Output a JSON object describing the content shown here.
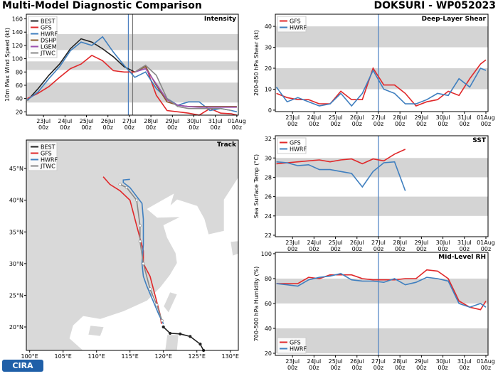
{
  "header": {
    "title": "Multi-Model Diagnostic Comparison",
    "storm": "DOKSURI - WP052023",
    "logo": "CIRA"
  },
  "chart_data": [
    {
      "type": "line",
      "title": "Intensity",
      "ylabel": "10m Max Wind Speed (kt)",
      "x": [
        22.25,
        22.75,
        23.25,
        23.75,
        24.25,
        24.75,
        25.25,
        25.75,
        26.25,
        26.75,
        27.25,
        27.75,
        28.25,
        28.75,
        29.25,
        29.75,
        30.25,
        30.75,
        31.25,
        31.75,
        32.0
      ],
      "xlim": [
        22.2,
        32.07
      ],
      "xticks": [
        {
          "value": 23,
          "label": "23Jul\n00z"
        },
        {
          "value": 24,
          "label": "24Jul\n00z"
        },
        {
          "value": 25,
          "label": "25Jul\n00z"
        },
        {
          "value": 26,
          "label": "26Jul\n00z"
        },
        {
          "value": 27,
          "label": "27Jul\n00z"
        },
        {
          "value": 28,
          "label": "28Jul\n00z"
        },
        {
          "value": 29,
          "label": "29Jul\n00z"
        },
        {
          "value": 30,
          "label": "30Jul\n00z"
        },
        {
          "value": 31,
          "label": "31Jul\n00z"
        },
        {
          "value": 32,
          "label": "01Aug\n00z"
        }
      ],
      "ylim": [
        15,
        167
      ],
      "yticks": [
        20,
        40,
        60,
        80,
        100,
        120,
        140,
        160
      ],
      "bands": [
        [
          34,
          64
        ],
        [
          83,
          96
        ],
        [
          113,
          137
        ]
      ],
      "vlines": [
        {
          "x": 26.95,
          "color": "#4a7fc0"
        },
        {
          "x": 27.15,
          "color": "#777777"
        }
      ],
      "legend": "upper left",
      "series": [
        {
          "name": "BEST",
          "color": "#222222",
          "values": [
            37,
            55,
            75,
            92,
            115,
            130,
            125,
            115,
            103,
            88,
            80,
            null,
            null,
            null,
            null,
            null,
            null,
            null,
            null,
            null,
            null
          ]
        },
        {
          "name": "GFS",
          "color": "#e0282a",
          "values": [
            40,
            48,
            58,
            72,
            85,
            92,
            105,
            97,
            82,
            80,
            80,
            90,
            45,
            22,
            20,
            18,
            15,
            25,
            18,
            17,
            15
          ]
        },
        {
          "name": "HWRF",
          "color": "#3f7fbf",
          "values": [
            38,
            50,
            70,
            88,
            112,
            125,
            120,
            133,
            110,
            90,
            72,
            80,
            55,
            40,
            30,
            35,
            35,
            22,
            25,
            22,
            20
          ]
        },
        {
          "name": "DSHP",
          "color": "#8b5a2b",
          "values": [
            null,
            null,
            null,
            null,
            null,
            null,
            null,
            null,
            null,
            null,
            80,
            88,
            60,
            35,
            30,
            28,
            28,
            28,
            28,
            28,
            28
          ]
        },
        {
          "name": "LGEM",
          "color": "#9b4fb0",
          "values": [
            null,
            null,
            null,
            null,
            null,
            null,
            null,
            null,
            null,
            null,
            80,
            85,
            62,
            38,
            30,
            28,
            27,
            27,
            27,
            27,
            27
          ]
        },
        {
          "name": "JTWC",
          "color": "#888888",
          "values": [
            null,
            null,
            null,
            null,
            null,
            null,
            null,
            null,
            null,
            null,
            80,
            90,
            75,
            40,
            28,
            25,
            25,
            25,
            25,
            22,
            null
          ]
        }
      ]
    },
    {
      "type": "map",
      "title": "Track",
      "xlim": [
        99.5,
        131.2
      ],
      "ylim": [
        16.3,
        49.5
      ],
      "xticks": [
        {
          "value": 100,
          "label": "100°E"
        },
        {
          "value": 105,
          "label": "105°E"
        },
        {
          "value": 110,
          "label": "110°E"
        },
        {
          "value": 115,
          "label": "115°E"
        },
        {
          "value": 120,
          "label": "120°E"
        },
        {
          "value": 125,
          "label": "125°E"
        },
        {
          "value": 130,
          "label": "130°E"
        }
      ],
      "yticks": [
        {
          "value": 20,
          "label": "20°N"
        },
        {
          "value": 25,
          "label": "25°N"
        },
        {
          "value": 30,
          "label": "30°N"
        },
        {
          "value": 35,
          "label": "35°N"
        },
        {
          "value": 40,
          "label": "40°N"
        },
        {
          "value": 45,
          "label": "45°N"
        }
      ],
      "legend": "upper left",
      "series": [
        {
          "name": "BEST",
          "color": "#222222",
          "marker": "#222222",
          "lon": [
            126,
            125.5,
            124,
            122.5,
            121,
            120
          ],
          "lat": [
            16.3,
            17.3,
            18.5,
            18.9,
            19,
            20
          ]
        },
        {
          "name": "GFS",
          "color": "#e0282a",
          "lon": [
            119.7,
            119.5,
            119,
            118.5,
            118,
            117,
            117,
            116.5,
            116,
            115.5,
            115,
            113.5,
            112,
            111
          ],
          "lat": [
            20.5,
            22,
            24,
            26,
            28,
            30,
            32,
            34,
            36,
            38,
            40,
            41.5,
            42.5,
            43.7
          ]
        },
        {
          "name": "HWRF",
          "color": "#3f7fbf",
          "lon": [
            120,
            119.3,
            118.5,
            117.5,
            117,
            116.8,
            117,
            117,
            117,
            116.8,
            115,
            114,
            114,
            115
          ],
          "lat": [
            20.5,
            22,
            24,
            26.5,
            28,
            30,
            33,
            35,
            37,
            39.5,
            42,
            42.8,
            43.2,
            43.3
          ]
        },
        {
          "name": "JTWC",
          "color": "#888888",
          "marker": "#ffffff",
          "lon": [
            119.8,
            119,
            118,
            117,
            116.5,
            116.5,
            116,
            114.5,
            113.5
          ],
          "lat": [
            21,
            23.5,
            26,
            30,
            33.5,
            36,
            40,
            42,
            42.5
          ]
        }
      ]
    },
    {
      "type": "line",
      "title": "Deep-Layer Shear",
      "ylabel": "200-850 hPa Shear (kt)",
      "x": [
        22.25,
        22.75,
        23.25,
        23.75,
        24.25,
        24.75,
        25.25,
        25.75,
        26.25,
        26.75,
        27.25,
        27.75,
        28.25,
        28.75,
        29.25,
        29.75,
        30.25,
        30.75,
        31.25,
        31.75,
        32.0
      ],
      "xlim": [
        22.2,
        32.1
      ],
      "xticks": [
        {
          "value": 23,
          "label": "23Jul\n00z"
        },
        {
          "value": 24,
          "label": "24Jul\n00z"
        },
        {
          "value": 25,
          "label": "25Jul\n00z"
        },
        {
          "value": 26,
          "label": "26Jul\n00z"
        },
        {
          "value": 27,
          "label": "27Jul\n00z"
        },
        {
          "value": 28,
          "label": "28Jul\n00z"
        },
        {
          "value": 29,
          "label": "29Jul\n00z"
        },
        {
          "value": 30,
          "label": "30Jul\n00z"
        },
        {
          "value": 31,
          "label": "31Jul\n00z"
        },
        {
          "value": 32,
          "label": "01Aug\n00z"
        }
      ],
      "ylim": [
        -0.7,
        45.8
      ],
      "yticks": [
        0,
        10,
        20,
        30,
        40
      ],
      "bands": [
        [
          10,
          20
        ],
        [
          30,
          40
        ]
      ],
      "vlines": [
        {
          "x": 27.0,
          "color": "#4a7fc0"
        }
      ],
      "legend": "upper left",
      "series": [
        {
          "name": "GFS",
          "color": "#e0282a",
          "values": [
            8,
            6,
            5,
            5,
            3,
            3,
            9,
            5,
            5,
            20,
            12,
            12,
            8,
            2,
            4,
            5,
            9,
            7,
            15,
            22,
            24
          ]
        },
        {
          "name": "HWRF",
          "color": "#3f7fbf",
          "values": [
            11,
            4,
            6,
            4,
            2,
            3,
            8,
            2,
            8,
            19,
            10,
            8,
            3,
            3,
            5,
            8,
            7,
            15,
            11,
            20,
            19
          ]
        }
      ]
    },
    {
      "type": "line",
      "title": "SST",
      "ylabel": "Sea Surface Temp (°C)",
      "x": [
        22.25,
        22.75,
        23.25,
        23.75,
        24.25,
        24.75,
        25.25,
        25.75,
        26.25,
        26.75,
        27.25,
        27.75,
        28.25,
        28.75,
        29.25,
        29.75,
        30.25,
        30.75,
        31.25,
        31.75,
        32.0
      ],
      "xlim": [
        22.2,
        32.1
      ],
      "xticks": [
        {
          "value": 23,
          "label": "23Jul\n00z"
        },
        {
          "value": 24,
          "label": "24Jul\n00z"
        },
        {
          "value": 25,
          "label": "25Jul\n00z"
        },
        {
          "value": 26,
          "label": "26Jul\n00z"
        },
        {
          "value": 27,
          "label": "27Jul\n00z"
        },
        {
          "value": 28,
          "label": "28Jul\n00z"
        },
        {
          "value": 29,
          "label": "29Jul\n00z"
        },
        {
          "value": 30,
          "label": "30Jul\n00z"
        },
        {
          "value": 31,
          "label": "31Jul\n00z"
        },
        {
          "value": 32,
          "label": "01Aug\n00z"
        }
      ],
      "ylim": [
        21.85,
        32.3
      ],
      "yticks": [
        22,
        24,
        26,
        28,
        30,
        32
      ],
      "bands": [
        [
          24,
          26
        ],
        [
          28,
          30
        ]
      ],
      "vlines": [
        {
          "x": 27.0,
          "color": "#4a7fc0"
        }
      ],
      "legend": "upper left",
      "series": [
        {
          "name": "GFS",
          "color": "#e0282a",
          "values": [
            29.4,
            29.5,
            29.6,
            29.7,
            29.8,
            29.6,
            29.8,
            29.9,
            29.4,
            29.9,
            29.7,
            30.4,
            30.9,
            null,
            null,
            null,
            null,
            null,
            null,
            null,
            null
          ]
        },
        {
          "name": "HWRF",
          "color": "#3f7fbf",
          "values": [
            29.6,
            29.5,
            29.2,
            29.3,
            28.8,
            28.8,
            28.6,
            28.4,
            27.0,
            28.6,
            29.5,
            29.6,
            26.6,
            null,
            null,
            null,
            null,
            null,
            null,
            null,
            null
          ]
        }
      ]
    },
    {
      "type": "line",
      "title": "Mid-Level RH",
      "ylabel": "700-500 hPa Humidity (%)",
      "x": [
        22.25,
        22.75,
        23.25,
        23.75,
        24.25,
        24.75,
        25.25,
        25.75,
        26.25,
        26.75,
        27.25,
        27.75,
        28.25,
        28.75,
        29.25,
        29.75,
        30.25,
        30.75,
        31.25,
        31.75,
        32.0
      ],
      "xlim": [
        22.2,
        32.1
      ],
      "xticks": [
        {
          "value": 23,
          "label": "23Jul\n00z"
        },
        {
          "value": 24,
          "label": "24Jul\n00z"
        },
        {
          "value": 25,
          "label": "25Jul\n00z"
        },
        {
          "value": 26,
          "label": "26Jul\n00z"
        },
        {
          "value": 27,
          "label": "27Jul\n00z"
        },
        {
          "value": 28,
          "label": "28Jul\n00z"
        },
        {
          "value": 29,
          "label": "29Jul\n00z"
        },
        {
          "value": 30,
          "label": "30Jul\n00z"
        },
        {
          "value": 31,
          "label": "31Jul\n00z"
        },
        {
          "value": 32,
          "label": "01Aug\n00z"
        }
      ],
      "ylim": [
        18.3,
        101.1
      ],
      "yticks": [
        20,
        40,
        60,
        80,
        100
      ],
      "bands": [
        [
          20,
          40
        ],
        [
          60,
          80
        ]
      ],
      "vlines": [
        {
          "x": 27.0,
          "color": "#4a7fc0"
        }
      ],
      "legend": "lower left",
      "series": [
        {
          "name": "GFS",
          "color": "#e0282a",
          "values": [
            76,
            76,
            76,
            81,
            80,
            83,
            83,
            83,
            80,
            79,
            79,
            79,
            80,
            80,
            87,
            86,
            80,
            62,
            57,
            55,
            62
          ]
        },
        {
          "name": "HWRF",
          "color": "#3f7fbf",
          "values": [
            76,
            75,
            74,
            79,
            81,
            82,
            84,
            79,
            78,
            78,
            77,
            80,
            75,
            77,
            81,
            80,
            78,
            60,
            57,
            60,
            57
          ]
        }
      ]
    }
  ]
}
